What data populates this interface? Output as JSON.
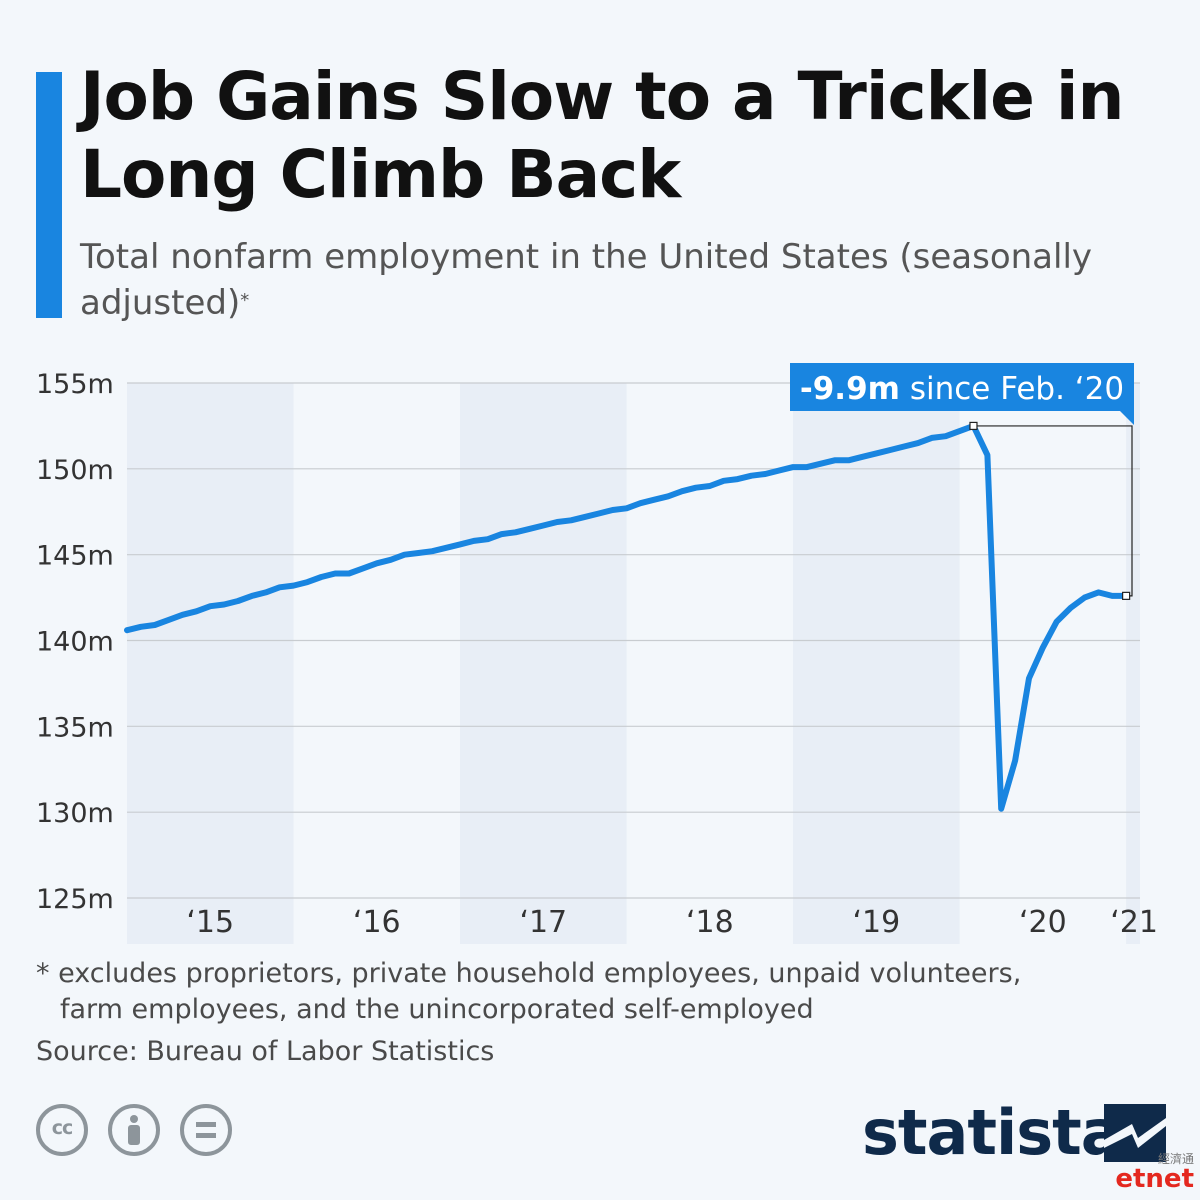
{
  "colors": {
    "accent": "#1985e0",
    "line": "#1985e0",
    "grid": "#c8ccd0",
    "band": "#e8eef6",
    "brand": "#0f2a4a"
  },
  "header": {
    "title": "Job Gains Slow to a Trickle in Long Climb Back",
    "subtitle": "Total nonfarm employment in the United States (seasonally adjusted)",
    "subtitle_mark": "*"
  },
  "chart_data": {
    "type": "line",
    "title": "Job Gains Slow to a Trickle in Long Climb Back",
    "ylabel": "",
    "xlabel": "",
    "ylim": [
      125,
      155
    ],
    "y_ticks": [
      "155m",
      "150m",
      "145m",
      "140m",
      "135m",
      "130m",
      "125m"
    ],
    "y_tick_values": [
      155,
      150,
      145,
      140,
      135,
      130,
      125
    ],
    "x_ticks": [
      "‘15",
      "‘16",
      "‘17",
      "‘18",
      "‘19",
      "‘20",
      "‘21"
    ],
    "x_tick_years": [
      2015,
      2016,
      2017,
      2018,
      2019,
      2020,
      2021
    ],
    "shaded_years": [
      2015,
      2017,
      2019,
      2021
    ],
    "grid": true,
    "start": "2015-01",
    "series": [
      {
        "name": "",
        "values": [
          140.6,
          140.8,
          140.9,
          141.2,
          141.5,
          141.7,
          142.0,
          142.1,
          142.3,
          142.6,
          142.8,
          143.1,
          143.2,
          143.4,
          143.7,
          143.9,
          143.9,
          144.2,
          144.5,
          144.7,
          145.0,
          145.1,
          145.2,
          145.4,
          145.6,
          145.8,
          145.9,
          146.2,
          146.3,
          146.5,
          146.7,
          146.9,
          147.0,
          147.2,
          147.4,
          147.6,
          147.7,
          148.0,
          148.2,
          148.4,
          148.7,
          148.9,
          149.0,
          149.3,
          149.4,
          149.6,
          149.7,
          149.9,
          150.1,
          150.1,
          150.3,
          150.5,
          150.5,
          150.7,
          150.9,
          151.1,
          151.3,
          151.5,
          151.8,
          151.9,
          152.2,
          152.5,
          150.8,
          130.2,
          133.0,
          137.8,
          139.6,
          141.1,
          141.9,
          142.5,
          142.8,
          142.6,
          142.6
        ]
      }
    ],
    "annotation": {
      "label": "-9.9m since Feb. ‘20",
      "label_value": "-9.9m",
      "label_rest": " since Feb. ‘20",
      "from": {
        "date": "2020-02",
        "value": 152.5
      },
      "to": {
        "date": "2021-01",
        "value": 142.6
      }
    }
  },
  "footer": {
    "footnote_line1": "* excludes proprietors, private household employees, unpaid volunteers,",
    "footnote_line2": "farm employees, and the unincorporated self-employed",
    "source": "Source: Bureau of Labor Statistics",
    "license_icons": [
      "creative-commons-icon",
      "attribution-icon",
      "no-derivatives-icon"
    ],
    "license_cc_text": "cc"
  },
  "brand": {
    "name": "statista"
  },
  "watermark": {
    "cn": "經濟通",
    "text": "etnet"
  }
}
